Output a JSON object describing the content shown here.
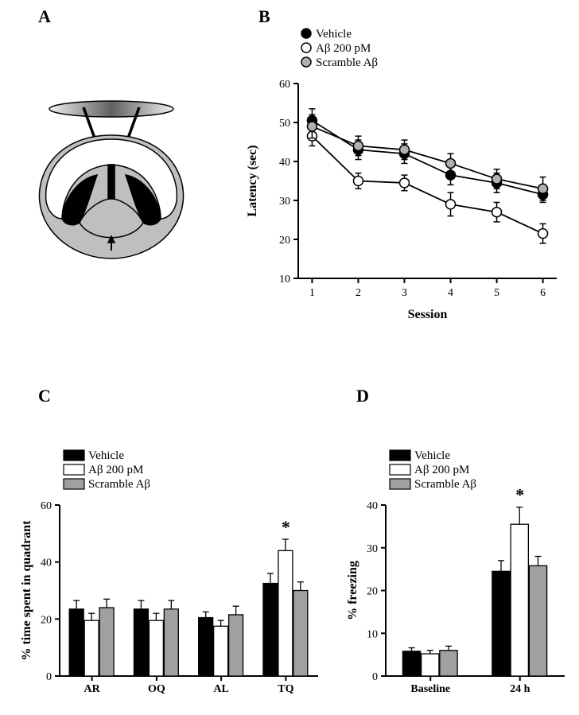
{
  "panelA": {
    "label": "A"
  },
  "panelB": {
    "label": "B",
    "xlabel": "Session",
    "ylabel": "Latency (sec)",
    "xlim": [
      0.7,
      6.3
    ],
    "ylim": [
      10,
      60
    ],
    "yticks": [
      10,
      20,
      30,
      40,
      50,
      60
    ],
    "xticks": [
      1,
      2,
      3,
      4,
      5,
      6
    ],
    "title_fontsize": 16,
    "label_fontsize": 16,
    "tick_fontsize": 14,
    "series": [
      {
        "name": "Vehicle",
        "marker_fill": "#000000",
        "marker_stroke": "#000000",
        "line": "#000000",
        "data": [
          [
            1,
            50.5,
            3
          ],
          [
            2,
            43,
            2.5
          ],
          [
            3,
            42,
            2.5
          ],
          [
            4,
            36.5,
            2.5
          ],
          [
            5,
            34.5,
            2.5
          ],
          [
            6,
            31.5,
            2
          ]
        ]
      },
      {
        "name": "Aβ 200 pM",
        "marker_fill": "#ffffff",
        "marker_stroke": "#000000",
        "line": "#000000",
        "data": [
          [
            1,
            46.5,
            2.5
          ],
          [
            2,
            35,
            2
          ],
          [
            3,
            34.5,
            2
          ],
          [
            4,
            29,
            3
          ],
          [
            5,
            27,
            2.5
          ],
          [
            6,
            21.5,
            2.5
          ]
        ]
      },
      {
        "name": "Scramble Aβ",
        "marker_fill": "#b0b0b0",
        "marker_stroke": "#000000",
        "line": "#000000",
        "data": [
          [
            1,
            49,
            3
          ],
          [
            2,
            44,
            2.5
          ],
          [
            3,
            43,
            2.5
          ],
          [
            4,
            39.5,
            2.5
          ],
          [
            5,
            35.5,
            2.5
          ],
          [
            6,
            33,
            3
          ]
        ]
      }
    ]
  },
  "panelC": {
    "label": "C",
    "xlabel": "",
    "ylabel": "% time spent in quadrant",
    "ylim": [
      0,
      60
    ],
    "yticks": [
      0,
      20,
      40,
      60
    ],
    "categories": [
      "AR",
      "OQ",
      "AL",
      "TQ"
    ],
    "label_fontsize": 16,
    "tick_fontsize": 14,
    "sig_marks": [
      {
        "cat": "TQ",
        "series": 1,
        "symbol": "*"
      }
    ],
    "series": [
      {
        "name": "Vehicle",
        "fill": "#000000",
        "stroke": "#000000",
        "values": [
          23.5,
          23.5,
          20.5,
          32.5
        ],
        "errs": [
          3,
          3,
          2,
          3.5
        ]
      },
      {
        "name": "Aβ 200 pM",
        "fill": "#ffffff",
        "stroke": "#000000",
        "values": [
          19.5,
          19.5,
          17.5,
          44
        ],
        "errs": [
          2.5,
          2.5,
          2,
          4
        ]
      },
      {
        "name": "Scramble Aβ",
        "fill": "#a0a0a0",
        "stroke": "#000000",
        "values": [
          24,
          23.5,
          21.5,
          30
        ],
        "errs": [
          3,
          3,
          3,
          3
        ]
      }
    ]
  },
  "panelD": {
    "label": "D",
    "xlabel": "",
    "ylabel": "% freezing",
    "ylim": [
      0,
      40
    ],
    "yticks": [
      0,
      10,
      20,
      30,
      40
    ],
    "categories": [
      "Baseline",
      "24 h"
    ],
    "label_fontsize": 16,
    "tick_fontsize": 14,
    "sig_marks": [
      {
        "cat": "24 h",
        "series": 1,
        "symbol": "*"
      }
    ],
    "series": [
      {
        "name": "Vehicle",
        "fill": "#000000",
        "stroke": "#000000",
        "values": [
          5.8,
          24.5
        ],
        "errs": [
          0.8,
          2.5
        ]
      },
      {
        "name": "Aβ 200 pM",
        "fill": "#ffffff",
        "stroke": "#000000",
        "values": [
          5.2,
          35.5
        ],
        "errs": [
          0.8,
          4
        ]
      },
      {
        "name": "Scramble Aβ",
        "fill": "#a0a0a0",
        "stroke": "#000000",
        "values": [
          6,
          25.8
        ],
        "errs": [
          1,
          2.2
        ]
      }
    ]
  },
  "colors": {
    "black": "#000000",
    "white": "#ffffff",
    "grey": "#a0a0a0",
    "lightgrey": "#b0b0b0"
  }
}
